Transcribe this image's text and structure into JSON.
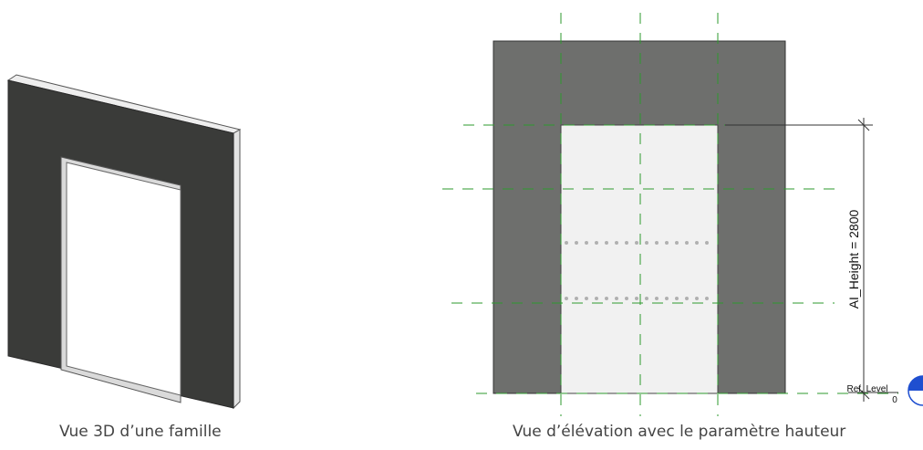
{
  "captions": {
    "view_3d": "Vue 3D d’une famille",
    "elevation": "Vue d’élévation avec le paramètre hauteur"
  },
  "dimension": {
    "label": "AI_Height = 2800"
  },
  "level_marker": {
    "name": "Ref. Level",
    "value": "0"
  },
  "colors": {
    "wall_face_3d": "#3a3b39",
    "wall_edge_3d": "#e6e6e6",
    "wall_elevation": "#6e6f6d",
    "opening": "#f1f1f1",
    "reference_plane": "#2e9a2e",
    "dotted_line": "#b0b0b0",
    "level_marker_blue": "#1f4fd0"
  }
}
